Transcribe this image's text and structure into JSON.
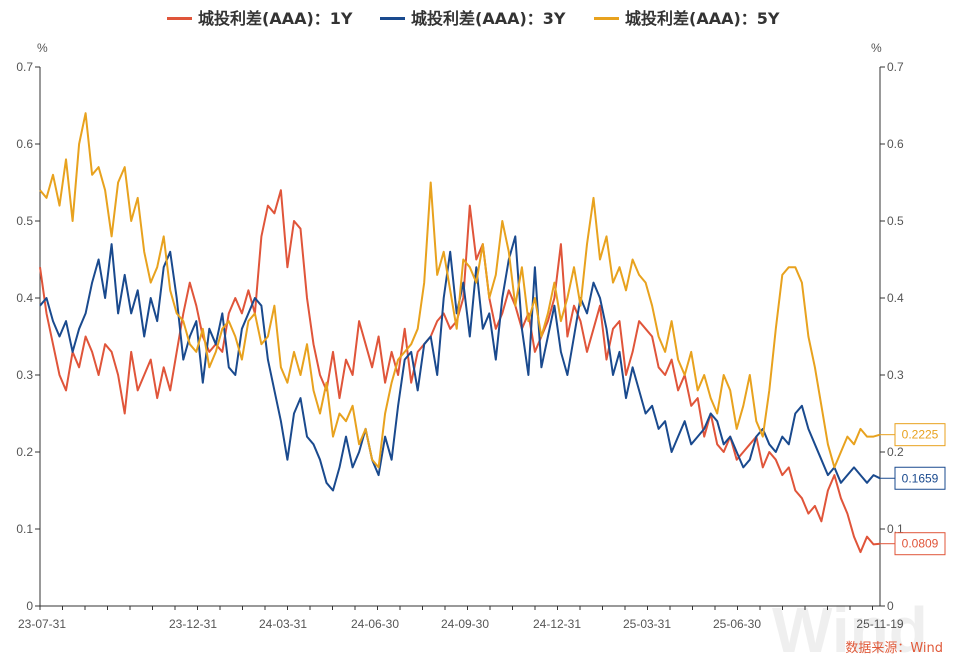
{
  "chart_data": {
    "type": "line",
    "title": "",
    "y_unit_left": "%",
    "y_unit_right": "%",
    "ylim": [
      0,
      0.7
    ],
    "y_ticks": [
      0,
      0.1,
      0.2,
      0.3,
      0.4,
      0.5,
      0.6,
      0.7
    ],
    "y_tick_labels": [
      "0",
      "0.1",
      "0.2",
      "0.3",
      "0.4",
      "0.5",
      "0.6",
      "0.7"
    ],
    "x_ticks": [
      "23-07-31",
      "23-12-31",
      "24-03-31",
      "24-06-30",
      "24-09-30",
      "24-12-31",
      "25-03-31",
      "25-06-30",
      "25-11-19"
    ],
    "source": "数据来源：Wind",
    "watermark": "Wind",
    "series": [
      {
        "name": "城投利差(AAA)：1Y",
        "color": "#e0553a",
        "end_label": "0.0809",
        "values": [
          0.44,
          0.38,
          0.34,
          0.3,
          0.28,
          0.33,
          0.31,
          0.35,
          0.33,
          0.3,
          0.34,
          0.33,
          0.3,
          0.25,
          0.33,
          0.28,
          0.3,
          0.32,
          0.27,
          0.31,
          0.28,
          0.33,
          0.38,
          0.42,
          0.39,
          0.35,
          0.33,
          0.34,
          0.33,
          0.38,
          0.4,
          0.38,
          0.41,
          0.38,
          0.48,
          0.52,
          0.51,
          0.54,
          0.44,
          0.5,
          0.49,
          0.4,
          0.34,
          0.3,
          0.28,
          0.33,
          0.27,
          0.32,
          0.3,
          0.37,
          0.34,
          0.31,
          0.35,
          0.29,
          0.33,
          0.3,
          0.36,
          0.29,
          0.33,
          0.34,
          0.35,
          0.37,
          0.38,
          0.36,
          0.37,
          0.4,
          0.52,
          0.45,
          0.47,
          0.4,
          0.36,
          0.38,
          0.41,
          0.39,
          0.36,
          0.38,
          0.33,
          0.35,
          0.37,
          0.4,
          0.47,
          0.35,
          0.39,
          0.37,
          0.33,
          0.36,
          0.39,
          0.32,
          0.36,
          0.37,
          0.3,
          0.33,
          0.37,
          0.36,
          0.35,
          0.31,
          0.3,
          0.32,
          0.28,
          0.3,
          0.26,
          0.27,
          0.22,
          0.25,
          0.21,
          0.2,
          0.22,
          0.19,
          0.2,
          0.21,
          0.22,
          0.18,
          0.2,
          0.19,
          0.17,
          0.18,
          0.15,
          0.14,
          0.12,
          0.13,
          0.11,
          0.15,
          0.17,
          0.14,
          0.12,
          0.09,
          0.07,
          0.09,
          0.08,
          0.0809
        ]
      },
      {
        "name": "城投利差(AAA)：3Y",
        "color": "#1a4a8e",
        "end_label": "0.1659",
        "values": [
          0.39,
          0.4,
          0.37,
          0.35,
          0.37,
          0.33,
          0.36,
          0.38,
          0.42,
          0.45,
          0.4,
          0.47,
          0.38,
          0.43,
          0.38,
          0.41,
          0.35,
          0.4,
          0.37,
          0.44,
          0.46,
          0.4,
          0.32,
          0.35,
          0.37,
          0.29,
          0.36,
          0.34,
          0.38,
          0.31,
          0.3,
          0.36,
          0.38,
          0.4,
          0.39,
          0.32,
          0.28,
          0.24,
          0.19,
          0.25,
          0.27,
          0.22,
          0.21,
          0.19,
          0.16,
          0.15,
          0.18,
          0.22,
          0.18,
          0.2,
          0.23,
          0.19,
          0.17,
          0.22,
          0.19,
          0.26,
          0.32,
          0.33,
          0.28,
          0.34,
          0.35,
          0.3,
          0.4,
          0.46,
          0.38,
          0.42,
          0.35,
          0.44,
          0.36,
          0.38,
          0.32,
          0.4,
          0.45,
          0.48,
          0.36,
          0.3,
          0.44,
          0.31,
          0.35,
          0.39,
          0.33,
          0.3,
          0.35,
          0.4,
          0.38,
          0.42,
          0.4,
          0.36,
          0.3,
          0.33,
          0.27,
          0.31,
          0.28,
          0.25,
          0.26,
          0.23,
          0.24,
          0.2,
          0.22,
          0.24,
          0.21,
          0.22,
          0.23,
          0.25,
          0.24,
          0.21,
          0.22,
          0.2,
          0.18,
          0.19,
          0.22,
          0.23,
          0.21,
          0.2,
          0.22,
          0.21,
          0.25,
          0.26,
          0.23,
          0.21,
          0.19,
          0.17,
          0.18,
          0.16,
          0.17,
          0.18,
          0.17,
          0.16,
          0.17,
          0.1659
        ]
      },
      {
        "name": "城投利差(AAA)：5Y",
        "color": "#e8a21e",
        "end_label": "0.2225",
        "values": [
          0.54,
          0.53,
          0.56,
          0.52,
          0.58,
          0.5,
          0.6,
          0.64,
          0.56,
          0.57,
          0.54,
          0.48,
          0.55,
          0.57,
          0.5,
          0.53,
          0.46,
          0.42,
          0.44,
          0.48,
          0.41,
          0.38,
          0.37,
          0.34,
          0.33,
          0.36,
          0.31,
          0.33,
          0.36,
          0.37,
          0.35,
          0.32,
          0.37,
          0.38,
          0.34,
          0.35,
          0.39,
          0.31,
          0.29,
          0.33,
          0.3,
          0.34,
          0.28,
          0.25,
          0.29,
          0.22,
          0.25,
          0.24,
          0.26,
          0.21,
          0.23,
          0.19,
          0.18,
          0.25,
          0.29,
          0.32,
          0.33,
          0.34,
          0.36,
          0.42,
          0.55,
          0.43,
          0.46,
          0.41,
          0.36,
          0.45,
          0.44,
          0.42,
          0.47,
          0.4,
          0.43,
          0.5,
          0.46,
          0.39,
          0.44,
          0.37,
          0.4,
          0.35,
          0.38,
          0.42,
          0.37,
          0.4,
          0.44,
          0.39,
          0.47,
          0.53,
          0.45,
          0.48,
          0.42,
          0.44,
          0.41,
          0.45,
          0.43,
          0.42,
          0.39,
          0.35,
          0.33,
          0.37,
          0.32,
          0.3,
          0.33,
          0.28,
          0.3,
          0.27,
          0.25,
          0.3,
          0.28,
          0.23,
          0.26,
          0.3,
          0.24,
          0.22,
          0.28,
          0.36,
          0.43,
          0.44,
          0.44,
          0.42,
          0.35,
          0.31,
          0.26,
          0.21,
          0.18,
          0.2,
          0.22,
          0.21,
          0.23,
          0.22,
          0.22,
          0.2225
        ]
      }
    ]
  }
}
